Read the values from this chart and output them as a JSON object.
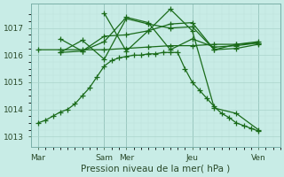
{
  "background_color": "#c8ece6",
  "grid_color_major": "#aad4cc",
  "grid_color_minor": "#bde0da",
  "line_color": "#1a6b1a",
  "marker": "+",
  "markersize": 4,
  "linewidth": 0.9,
  "xlabel": "Pression niveau de la mer( hPa )",
  "xlabel_fontsize": 7.5,
  "tick_fontsize": 6.5,
  "ylim": [
    1012.6,
    1017.9
  ],
  "yticks": [
    1013,
    1014,
    1015,
    1016,
    1017
  ],
  "xtick_labels": [
    "Mar",
    "Sam",
    "Mer",
    "Jeu",
    "Ven"
  ],
  "xtick_positions": [
    0,
    9,
    12,
    21,
    30
  ],
  "xlim": [
    -1,
    33
  ],
  "num_minor_x": 33,
  "series_x": [
    [
      0,
      1,
      2,
      3,
      4,
      5,
      6,
      7,
      8,
      9,
      10,
      11,
      12,
      13,
      14,
      15,
      16,
      17,
      18,
      19,
      20,
      21,
      22,
      23,
      24,
      25,
      26,
      27,
      28,
      29,
      30
    ],
    [
      0,
      3,
      6,
      9,
      12,
      15,
      18,
      21,
      24,
      27,
      30
    ],
    [
      3,
      6,
      9,
      12,
      15,
      18,
      21,
      24,
      27,
      30
    ],
    [
      3,
      6,
      9,
      12,
      15,
      18,
      21,
      24,
      27,
      30
    ],
    [
      3,
      6,
      9,
      12,
      15,
      18,
      21,
      24,
      27,
      30
    ],
    [
      9,
      12,
      15,
      18,
      21,
      24,
      27,
      30
    ]
  ],
  "series_y": [
    [
      1013.5,
      1013.6,
      1013.75,
      1013.9,
      1014.0,
      1014.2,
      1014.5,
      1014.8,
      1015.2,
      1015.6,
      1015.8,
      1015.9,
      1015.95,
      1016.0,
      1016.0,
      1016.05,
      1016.05,
      1016.1,
      1016.1,
      1016.1,
      1015.5,
      1015.0,
      1014.7,
      1014.4,
      1014.1,
      1013.85,
      1013.7,
      1013.5,
      1013.4,
      1013.3,
      1013.2
    ],
    [
      1016.2,
      1016.2,
      1016.2,
      1016.2,
      1016.25,
      1016.3,
      1016.35,
      1016.35,
      1016.4,
      1016.4,
      1016.45
    ],
    [
      1016.6,
      1016.15,
      1016.7,
      1016.75,
      1016.9,
      1017.15,
      1017.2,
      1016.2,
      1016.25,
      1016.4
    ],
    [
      1016.1,
      1016.55,
      1015.85,
      1017.35,
      1017.15,
      1017.0,
      1017.05,
      1016.2,
      1016.4,
      1016.5
    ],
    [
      1016.1,
      1016.15,
      1016.5,
      1017.4,
      1017.2,
      1016.2,
      1016.6,
      1016.3,
      1016.35,
      1016.45
    ],
    [
      1017.55,
      1016.15,
      1016.9,
      1017.7,
      1016.9,
      1014.05,
      1013.85,
      1013.25
    ]
  ]
}
